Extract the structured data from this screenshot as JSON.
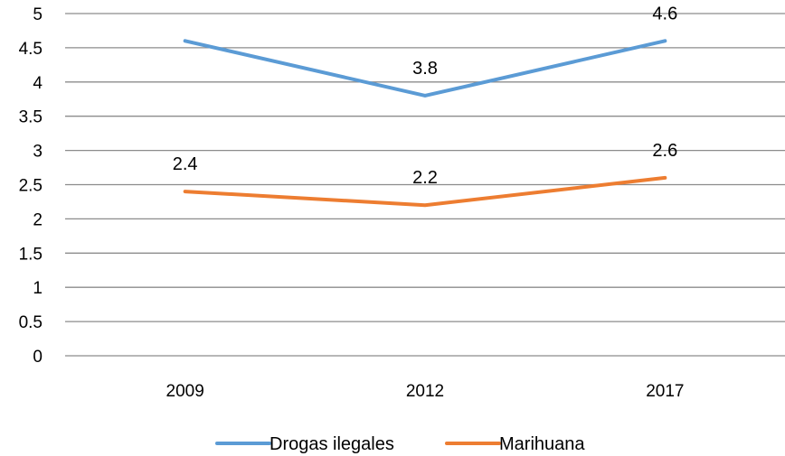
{
  "chart_data": {
    "type": "line",
    "title": "",
    "xlabel": "",
    "ylabel": "",
    "categories": [
      "2009",
      "2012",
      "2017"
    ],
    "ylim": [
      0,
      5
    ],
    "ytick_step": 0.5,
    "y_tick_labels": [
      "0",
      "0.5",
      "1",
      "1.5",
      "2",
      "2.5",
      "3",
      "3.5",
      "4",
      "4.5",
      "5"
    ],
    "grid": "horizontal",
    "legend_position": "bottom",
    "series": [
      {
        "name": "Drogas ilegales",
        "values": [
          4.6,
          3.8,
          4.6
        ],
        "data_labels": [
          "",
          "3.8",
          "4.6"
        ],
        "color": "#5B9BD5"
      },
      {
        "name": "Marihuana",
        "values": [
          2.4,
          2.2,
          2.6
        ],
        "data_labels": [
          "2.4",
          "2.2",
          "2.6"
        ],
        "color": "#ED7D31"
      }
    ]
  }
}
